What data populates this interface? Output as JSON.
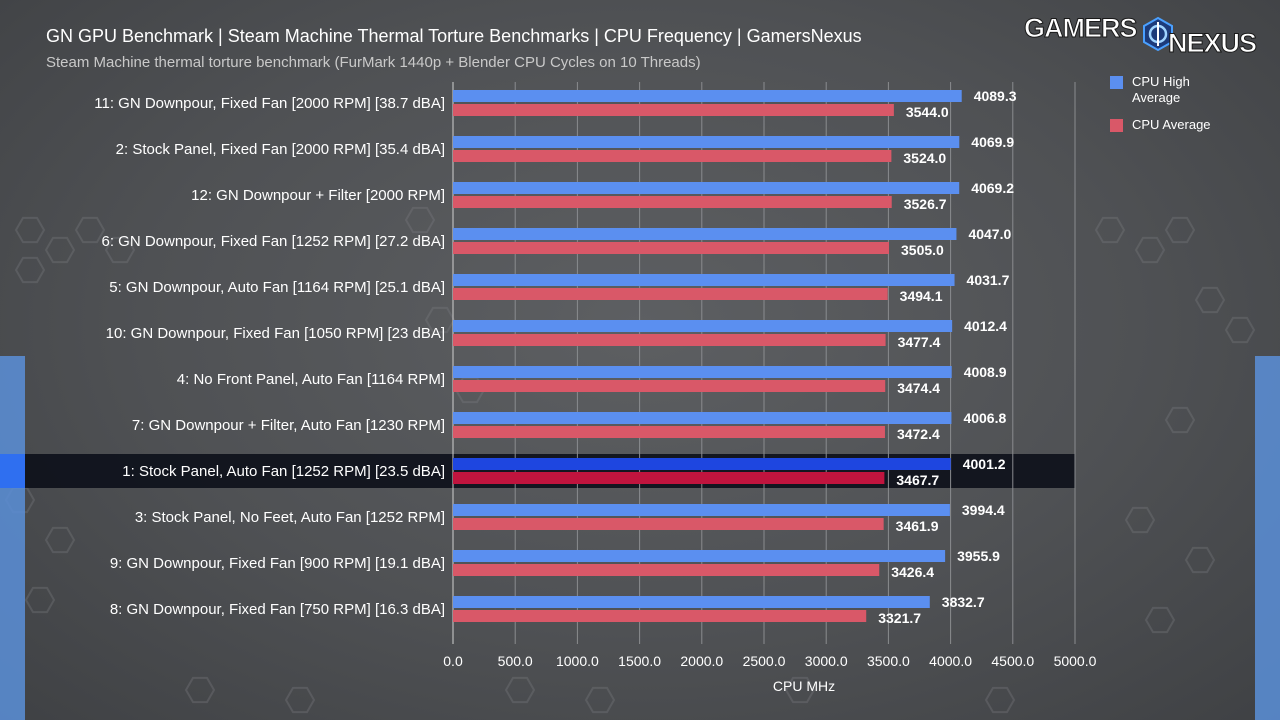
{
  "header": {
    "title": "GN GPU Benchmark | Steam Machine Thermal Torture Benchmarks | CPU Frequency | GamersNexus",
    "subtitle": "Steam Machine thermal torture benchmark (FurMark 1440p + Blender CPU Cycles on 10 Threads)",
    "logo_text": "GAMERSNEXUS"
  },
  "colors": {
    "high_avg": "#5b8ff0",
    "avg": "#d95868",
    "highlight_high": "#1e46e0",
    "highlight_avg": "#c0143e",
    "grid": "#8a8c8f"
  },
  "chart_data": {
    "type": "bar",
    "orientation": "horizontal",
    "title": "GN GPU Benchmark | Steam Machine Thermal Torture Benchmarks | CPU Frequency | GamersNexus",
    "subtitle": "Steam Machine thermal torture benchmark (FurMark 1440p + Blender CPU Cycles on 10 Threads)",
    "xlabel": "CPU MHz",
    "ylabel": "",
    "xlim": [
      0,
      5000
    ],
    "xticks": [
      "0.0",
      "500.0",
      "1000.0",
      "1500.0",
      "2000.0",
      "2500.0",
      "3000.0",
      "3500.0",
      "4000.0",
      "4500.0",
      "5000.0"
    ],
    "grid": "vertical",
    "legend_position": "top-right",
    "highlight_index": 8,
    "categories": [
      "11: GN Downpour, Fixed Fan [2000 RPM] [38.7 dBA]",
      "2: Stock Panel, Fixed Fan [2000 RPM] [35.4 dBA]",
      "12: GN Downpour + Filter [2000 RPM]",
      "6: GN Downpour, Fixed Fan [1252 RPM] [27.2 dBA]",
      "5: GN Downpour, Auto Fan [1164 RPM] [25.1 dBA]",
      "10: GN Downpour, Fixed Fan [1050 RPM] [23 dBA]",
      "4: No Front Panel, Auto Fan [1164 RPM]",
      "7: GN Downpour + Filter, Auto Fan [1230 RPM]",
      "1: Stock Panel, Auto Fan [1252 RPM] [23.5 dBA]",
      "3: Stock Panel, No Feet, Auto Fan [1252 RPM]",
      "9: GN Downpour, Fixed Fan [900 RPM] [19.1 dBA]",
      "8: GN Downpour, Fixed Fan [750 RPM] [16.3 dBA]"
    ],
    "series": [
      {
        "name": "CPU High Average",
        "values": [
          4089.3,
          4069.9,
          4069.2,
          4047.0,
          4031.7,
          4012.4,
          4008.9,
          4006.8,
          4001.2,
          3994.4,
          3955.9,
          3832.7
        ],
        "labels": [
          "4089.3",
          "4069.9",
          "4069.2",
          "4047.0",
          "4031.7",
          "4012.4",
          "4008.9",
          "4006.8",
          "4001.2",
          "3994.4",
          "3955.9",
          "3832.7"
        ]
      },
      {
        "name": "CPU Average",
        "values": [
          3544.0,
          3524.0,
          3526.7,
          3505.0,
          3494.1,
          3477.4,
          3474.4,
          3472.4,
          3467.7,
          3461.9,
          3426.4,
          3321.7
        ],
        "labels": [
          "3544.0",
          "3524.0",
          "3526.7",
          "3505.0",
          "3494.1",
          "3477.4",
          "3474.4",
          "3472.4",
          "3467.7",
          "3461.9",
          "3426.4",
          "3321.7"
        ]
      }
    ]
  }
}
